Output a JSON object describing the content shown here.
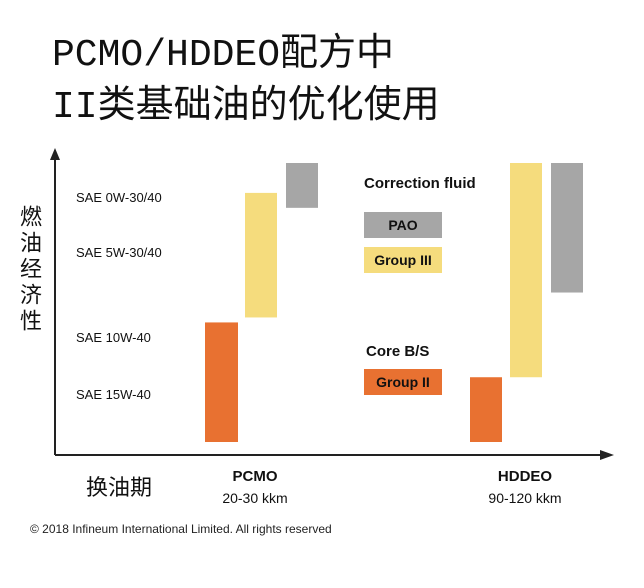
{
  "title_line1": "PCMO/HDDEO配方中",
  "title_line2": "II类基础油的优化使用",
  "y_axis_label": "燃油经济性",
  "x_axis_label": "换油期",
  "y_categories": [
    "SAE 0W-30/40",
    "SAE 5W-30/40",
    "SAE 10W-40",
    "SAE 15W-40"
  ],
  "groups": [
    {
      "name": "PCMO",
      "sub": "20-30 kkm"
    },
    {
      "name": "HDDEO",
      "sub": "90-120 kkm"
    }
  ],
  "legend": {
    "correction_fluid": "Correction fluid",
    "pao": "PAO",
    "group3": "Group III",
    "core": "Core B/S",
    "group2": "Group II"
  },
  "colors": {
    "group2": "#e87131",
    "group3": "#f5dc7d",
    "pao": "#a6a6a6"
  },
  "chart_data": {
    "type": "bar",
    "categories": [
      "PCMO",
      "HDDEO"
    ],
    "y_categories": [
      "SAE 0W-30/40",
      "SAE 5W-30/40",
      "SAE 10W-40",
      "SAE 15W-40"
    ],
    "series": [
      {
        "name": "Group II",
        "ranges": [
          [
            0,
            1.2
          ],
          [
            0,
            0.65
          ]
        ]
      },
      {
        "name": "Group III",
        "ranges": [
          [
            1.25,
            2.5
          ],
          [
            0.65,
            2.8
          ]
        ]
      },
      {
        "name": "PAO",
        "ranges": [
          [
            2.35,
            2.8
          ],
          [
            1.5,
            2.8
          ]
        ]
      }
    ]
  },
  "copyright": "© 2018 Infineum International Limited. All rights reserved"
}
